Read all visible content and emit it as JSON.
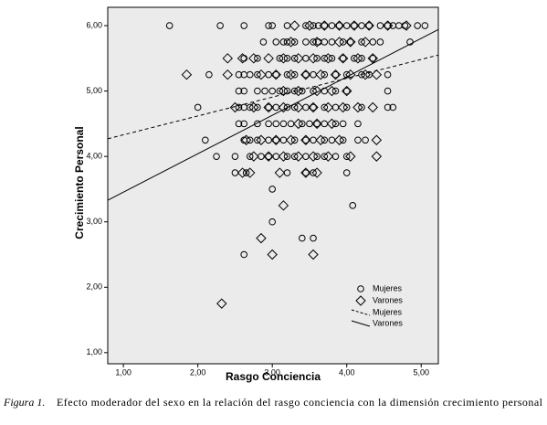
{
  "chart_data": {
    "type": "scatter",
    "xlabel": "Rasgo Conciencia",
    "ylabel": "Crecimiento Personal",
    "caption": {
      "label": "Figura 1.",
      "text": "Efecto moderador del sexo en la relación del rasgo conciencia con la dimensión crecimiento personal"
    },
    "xlim": [
      0.79,
      5.23
    ],
    "ylim": [
      0.83,
      6.28
    ],
    "xticks": [
      {
        "value": 1,
        "label": "1,00"
      },
      {
        "value": 2,
        "label": "2,00"
      },
      {
        "value": 3,
        "label": "3,00"
      },
      {
        "value": 4,
        "label": "4,00"
      },
      {
        "value": 5,
        "label": "5,00"
      }
    ],
    "yticks": [
      {
        "value": 1,
        "label": "1,00"
      },
      {
        "value": 2,
        "label": "2,00"
      },
      {
        "value": 3,
        "label": "3,00"
      },
      {
        "value": 4,
        "label": "4,00"
      },
      {
        "value": 5,
        "label": "5,00"
      },
      {
        "value": 6,
        "label": "6,00"
      }
    ],
    "background": "#ebebeb",
    "color": "#000000",
    "series": [
      {
        "name": "Mujeres",
        "marker": "circle",
        "x": [
          1.62,
          2.3,
          2.62,
          2.95,
          3.0,
          3.2,
          3.45,
          3.55,
          3.62,
          3.7,
          3.8,
          3.9,
          4.0,
          4.1,
          4.2,
          4.3,
          4.45,
          4.55,
          4.62,
          4.7,
          4.78,
          4.95,
          5.05,
          2.88,
          3.05,
          3.15,
          3.2,
          3.3,
          3.45,
          3.55,
          3.62,
          3.7,
          3.8,
          3.95,
          4.05,
          4.2,
          4.35,
          4.45,
          4.85,
          2.62,
          2.8,
          3.1,
          3.2,
          3.3,
          3.45,
          3.6,
          3.7,
          3.8,
          3.95,
          4.1,
          4.2,
          4.35,
          2.15,
          2.55,
          2.62,
          2.7,
          2.8,
          2.95,
          3.05,
          3.2,
          3.3,
          3.45,
          3.55,
          3.7,
          3.85,
          4.0,
          4.2,
          4.3,
          4.55,
          2.55,
          2.62,
          2.8,
          2.9,
          3.0,
          3.1,
          3.2,
          3.3,
          3.4,
          3.55,
          3.7,
          3.85,
          4.0,
          4.55,
          2.0,
          2.55,
          2.62,
          2.7,
          2.8,
          2.95,
          3.05,
          3.2,
          3.3,
          3.45,
          3.55,
          3.7,
          3.85,
          4.0,
          4.2,
          4.55,
          4.62,
          2.55,
          2.62,
          2.8,
          2.95,
          3.05,
          3.15,
          3.25,
          3.4,
          3.5,
          3.6,
          3.7,
          3.85,
          3.95,
          4.15,
          2.1,
          2.62,
          2.7,
          2.8,
          2.95,
          3.05,
          3.15,
          3.3,
          3.45,
          3.55,
          3.7,
          3.8,
          3.95,
          4.15,
          4.25,
          2.25,
          2.5,
          2.7,
          2.85,
          2.95,
          3.05,
          3.2,
          3.3,
          3.45,
          3.6,
          3.7,
          3.85,
          4.0,
          2.5,
          2.65,
          3.2,
          3.45,
          3.55,
          4.0,
          3.0,
          4.08,
          3.0,
          3.4,
          3.55,
          2.62
        ],
        "y": [
          6,
          6,
          6,
          6,
          6,
          6,
          6,
          6,
          6,
          6,
          6,
          6,
          6,
          6,
          6,
          6,
          6,
          6,
          6,
          6,
          6,
          6,
          6,
          5.75,
          5.75,
          5.75,
          5.75,
          5.75,
          5.75,
          5.75,
          5.75,
          5.75,
          5.75,
          5.75,
          5.75,
          5.75,
          5.75,
          5.75,
          5.75,
          5.5,
          5.5,
          5.5,
          5.5,
          5.5,
          5.5,
          5.5,
          5.5,
          5.5,
          5.5,
          5.5,
          5.5,
          5.5,
          5.25,
          5.25,
          5.25,
          5.25,
          5.25,
          5.25,
          5.25,
          5.25,
          5.25,
          5.25,
          5.25,
          5.25,
          5.25,
          5.25,
          5.25,
          5.25,
          5.25,
          5,
          5,
          5,
          5,
          5,
          5,
          5,
          5,
          5,
          5,
          5,
          5,
          5,
          5,
          4.75,
          4.75,
          4.75,
          4.75,
          4.75,
          4.75,
          4.75,
          4.75,
          4.75,
          4.75,
          4.75,
          4.75,
          4.75,
          4.75,
          4.75,
          4.75,
          4.75,
          4.5,
          4.5,
          4.5,
          4.5,
          4.5,
          4.5,
          4.5,
          4.5,
          4.5,
          4.5,
          4.5,
          4.5,
          4.5,
          4.5,
          4.25,
          4.25,
          4.25,
          4.25,
          4.25,
          4.25,
          4.25,
          4.25,
          4.25,
          4.25,
          4.25,
          4.25,
          4.25,
          4.25,
          4.25,
          4,
          4,
          4,
          4,
          4,
          4,
          4,
          4,
          4,
          4,
          4,
          4,
          4,
          3.75,
          3.75,
          3.75,
          3.75,
          3.75,
          3.75,
          3.5,
          3.25,
          3,
          2.75,
          2.75,
          2.5
        ]
      },
      {
        "name": "Varones",
        "marker": "diamond",
        "x": [
          3.3,
          3.5,
          3.7,
          3.9,
          4.1,
          4.3,
          4.55,
          4.8,
          3.25,
          3.6,
          3.9,
          4.05,
          4.25,
          2.4,
          2.6,
          2.75,
          2.95,
          3.15,
          3.35,
          3.55,
          3.75,
          3.95,
          4.15,
          4.35,
          1.85,
          2.4,
          2.85,
          3.05,
          3.25,
          3.45,
          3.65,
          3.85,
          4.05,
          4.25,
          4.4,
          3.15,
          3.35,
          3.6,
          3.8,
          4.0,
          2.5,
          2.75,
          2.95,
          3.15,
          3.35,
          3.55,
          3.75,
          3.95,
          4.15,
          4.35,
          3.35,
          3.6,
          3.8,
          2.65,
          2.85,
          3.05,
          3.25,
          3.45,
          3.65,
          3.9,
          4.4,
          2.75,
          2.95,
          3.15,
          3.35,
          3.55,
          3.75,
          4.05,
          4.4,
          2.6,
          2.7,
          3.1,
          3.45,
          3.6,
          3.15,
          2.85,
          3.0,
          3.55,
          2.32
        ],
        "y": [
          6,
          6,
          6,
          6,
          6,
          6,
          6,
          6,
          5.75,
          5.75,
          5.75,
          5.75,
          5.75,
          5.5,
          5.5,
          5.5,
          5.5,
          5.5,
          5.5,
          5.5,
          5.5,
          5.5,
          5.5,
          5.5,
          5.25,
          5.25,
          5.25,
          5.25,
          5.25,
          5.25,
          5.25,
          5.25,
          5.25,
          5.25,
          5.25,
          5,
          5,
          5,
          5,
          5,
          4.75,
          4.75,
          4.75,
          4.75,
          4.75,
          4.75,
          4.75,
          4.75,
          4.75,
          4.75,
          4.5,
          4.5,
          4.5,
          4.25,
          4.25,
          4.25,
          4.25,
          4.25,
          4.25,
          4.25,
          4.25,
          4,
          4,
          4,
          4,
          4,
          4,
          4,
          4,
          3.75,
          3.75,
          3.75,
          3.75,
          3.75,
          3.25,
          2.75,
          2.5,
          2.5,
          1.75
        ]
      }
    ],
    "fit_lines": [
      {
        "name": "Mujeres",
        "style": "dashed",
        "x": [
          0.79,
          5.23
        ],
        "y": [
          4.27,
          5.55
        ]
      },
      {
        "name": "Varones",
        "style": "solid",
        "x": [
          0.79,
          5.23
        ],
        "y": [
          3.33,
          5.94
        ]
      }
    ]
  }
}
